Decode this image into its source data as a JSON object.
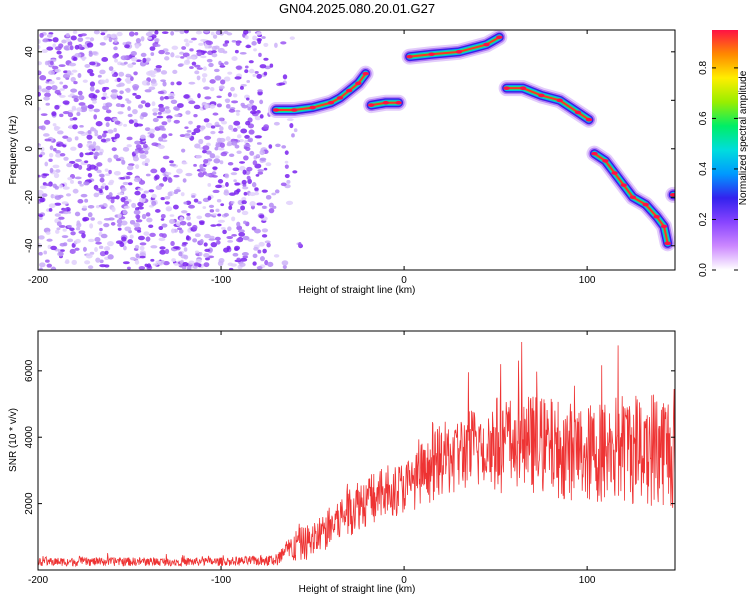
{
  "title": "GN04.2025.080.20.01.G27",
  "colors": {
    "snr_line": "#ee3333",
    "scatter_point": "#7a22ee",
    "colormap": [
      "#ffffff",
      "#cc88ff",
      "#8844ff",
      "#3322ee",
      "#0099ff",
      "#00dddd",
      "#00ee66",
      "#99ee00",
      "#ffee00",
      "#ff8800",
      "#ff1144"
    ]
  },
  "chart_data": [
    {
      "type": "heatmap",
      "name": "spectrogram",
      "xlabel": "Height of straight line (km)",
      "ylabel": "Frequency (Hz)",
      "xlim": [
        -200,
        148
      ],
      "ylim": [
        -50,
        49
      ],
      "xticks": [
        -200,
        -100,
        0,
        100
      ],
      "xtick_labels": [
        "-200",
        "-100",
        "0",
        "100"
      ],
      "yticks": [
        -40,
        -20,
        0,
        20,
        40
      ],
      "ytick_labels": [
        "-40",
        "-20",
        "0",
        "20",
        "40"
      ],
      "colorbar": {
        "label": "Normalized spectral amplitude",
        "range": [
          0,
          0.95
        ],
        "ticks": [
          0,
          0.2,
          0.4,
          0.6,
          0.8
        ],
        "tick_labels": [
          "0.0",
          "0.2",
          "0.4",
          "0.6",
          "0.8"
        ]
      },
      "noise_region": {
        "x": [
          -200,
          -68
        ],
        "y": [
          -50,
          49
        ]
      },
      "tone_track": [
        {
          "x": -70,
          "y": 16
        },
        {
          "x": -60,
          "y": 16
        },
        {
          "x": -50,
          "y": 17
        },
        {
          "x": -40,
          "y": 19
        },
        {
          "x": -35,
          "y": 21
        },
        {
          "x": -30,
          "y": 24
        },
        {
          "x": -25,
          "y": 27
        },
        {
          "x": -21,
          "y": 31
        },
        {
          "x": -18,
          "y": 18
        },
        {
          "x": -10,
          "y": 19
        },
        {
          "x": -3,
          "y": 19
        },
        {
          "x": 3,
          "y": 38
        },
        {
          "x": 15,
          "y": 39
        },
        {
          "x": 30,
          "y": 40
        },
        {
          "x": 45,
          "y": 43
        },
        {
          "x": 52,
          "y": 46
        },
        {
          "x": 56,
          "y": 25
        },
        {
          "x": 65,
          "y": 25
        },
        {
          "x": 75,
          "y": 22
        },
        {
          "x": 85,
          "y": 20
        },
        {
          "x": 95,
          "y": 15
        },
        {
          "x": 101,
          "y": 12
        },
        {
          "x": 104,
          "y": -2
        },
        {
          "x": 110,
          "y": -5
        },
        {
          "x": 115,
          "y": -10
        },
        {
          "x": 120,
          "y": -15
        },
        {
          "x": 125,
          "y": -20
        },
        {
          "x": 132,
          "y": -23
        },
        {
          "x": 138,
          "y": -28
        },
        {
          "x": 142,
          "y": -32
        },
        {
          "x": 144,
          "y": -39
        },
        {
          "x": 147,
          "y": -19
        }
      ]
    },
    {
      "type": "line",
      "name": "snr",
      "xlabel": "Height of straight line (km)",
      "ylabel": "SNR (10 * v/v)",
      "xlim": [
        -200,
        148
      ],
      "ylim": [
        0,
        7200
      ],
      "xticks": [
        -200,
        -100,
        0,
        100
      ],
      "xtick_labels": [
        "-200",
        "-100",
        "0",
        "100"
      ],
      "yticks": [
        2000,
        4000,
        6000
      ],
      "ytick_labels": [
        "2000",
        "4000",
        "6000"
      ],
      "series": [
        {
          "x": [
            -200,
            -180,
            -160,
            -140,
            -120,
            -100,
            -80,
            -70,
            -60,
            -50,
            -40,
            -30,
            -25,
            -20,
            -10,
            0,
            10,
            20,
            30,
            40,
            50,
            60,
            70,
            80,
            90,
            100,
            110,
            120,
            130,
            140,
            148
          ],
          "y_mean": [
            250,
            250,
            250,
            250,
            250,
            250,
            280,
            300,
            700,
            900,
            1300,
            1800,
            2000,
            2100,
            2300,
            2500,
            2800,
            3300,
            3500,
            3700,
            3800,
            3800,
            3800,
            3700,
            3600,
            3500,
            3600,
            3700,
            3700,
            3700,
            3600
          ],
          "y_spread": [
            130,
            130,
            130,
            130,
            130,
            130,
            150,
            200,
            500,
            550,
            650,
            800,
            800,
            800,
            800,
            800,
            900,
            1100,
            1200,
            1300,
            1500,
            1500,
            1500,
            1500,
            1500,
            1500,
            1600,
            1700,
            1800,
            1800,
            1800
          ]
        }
      ]
    }
  ]
}
